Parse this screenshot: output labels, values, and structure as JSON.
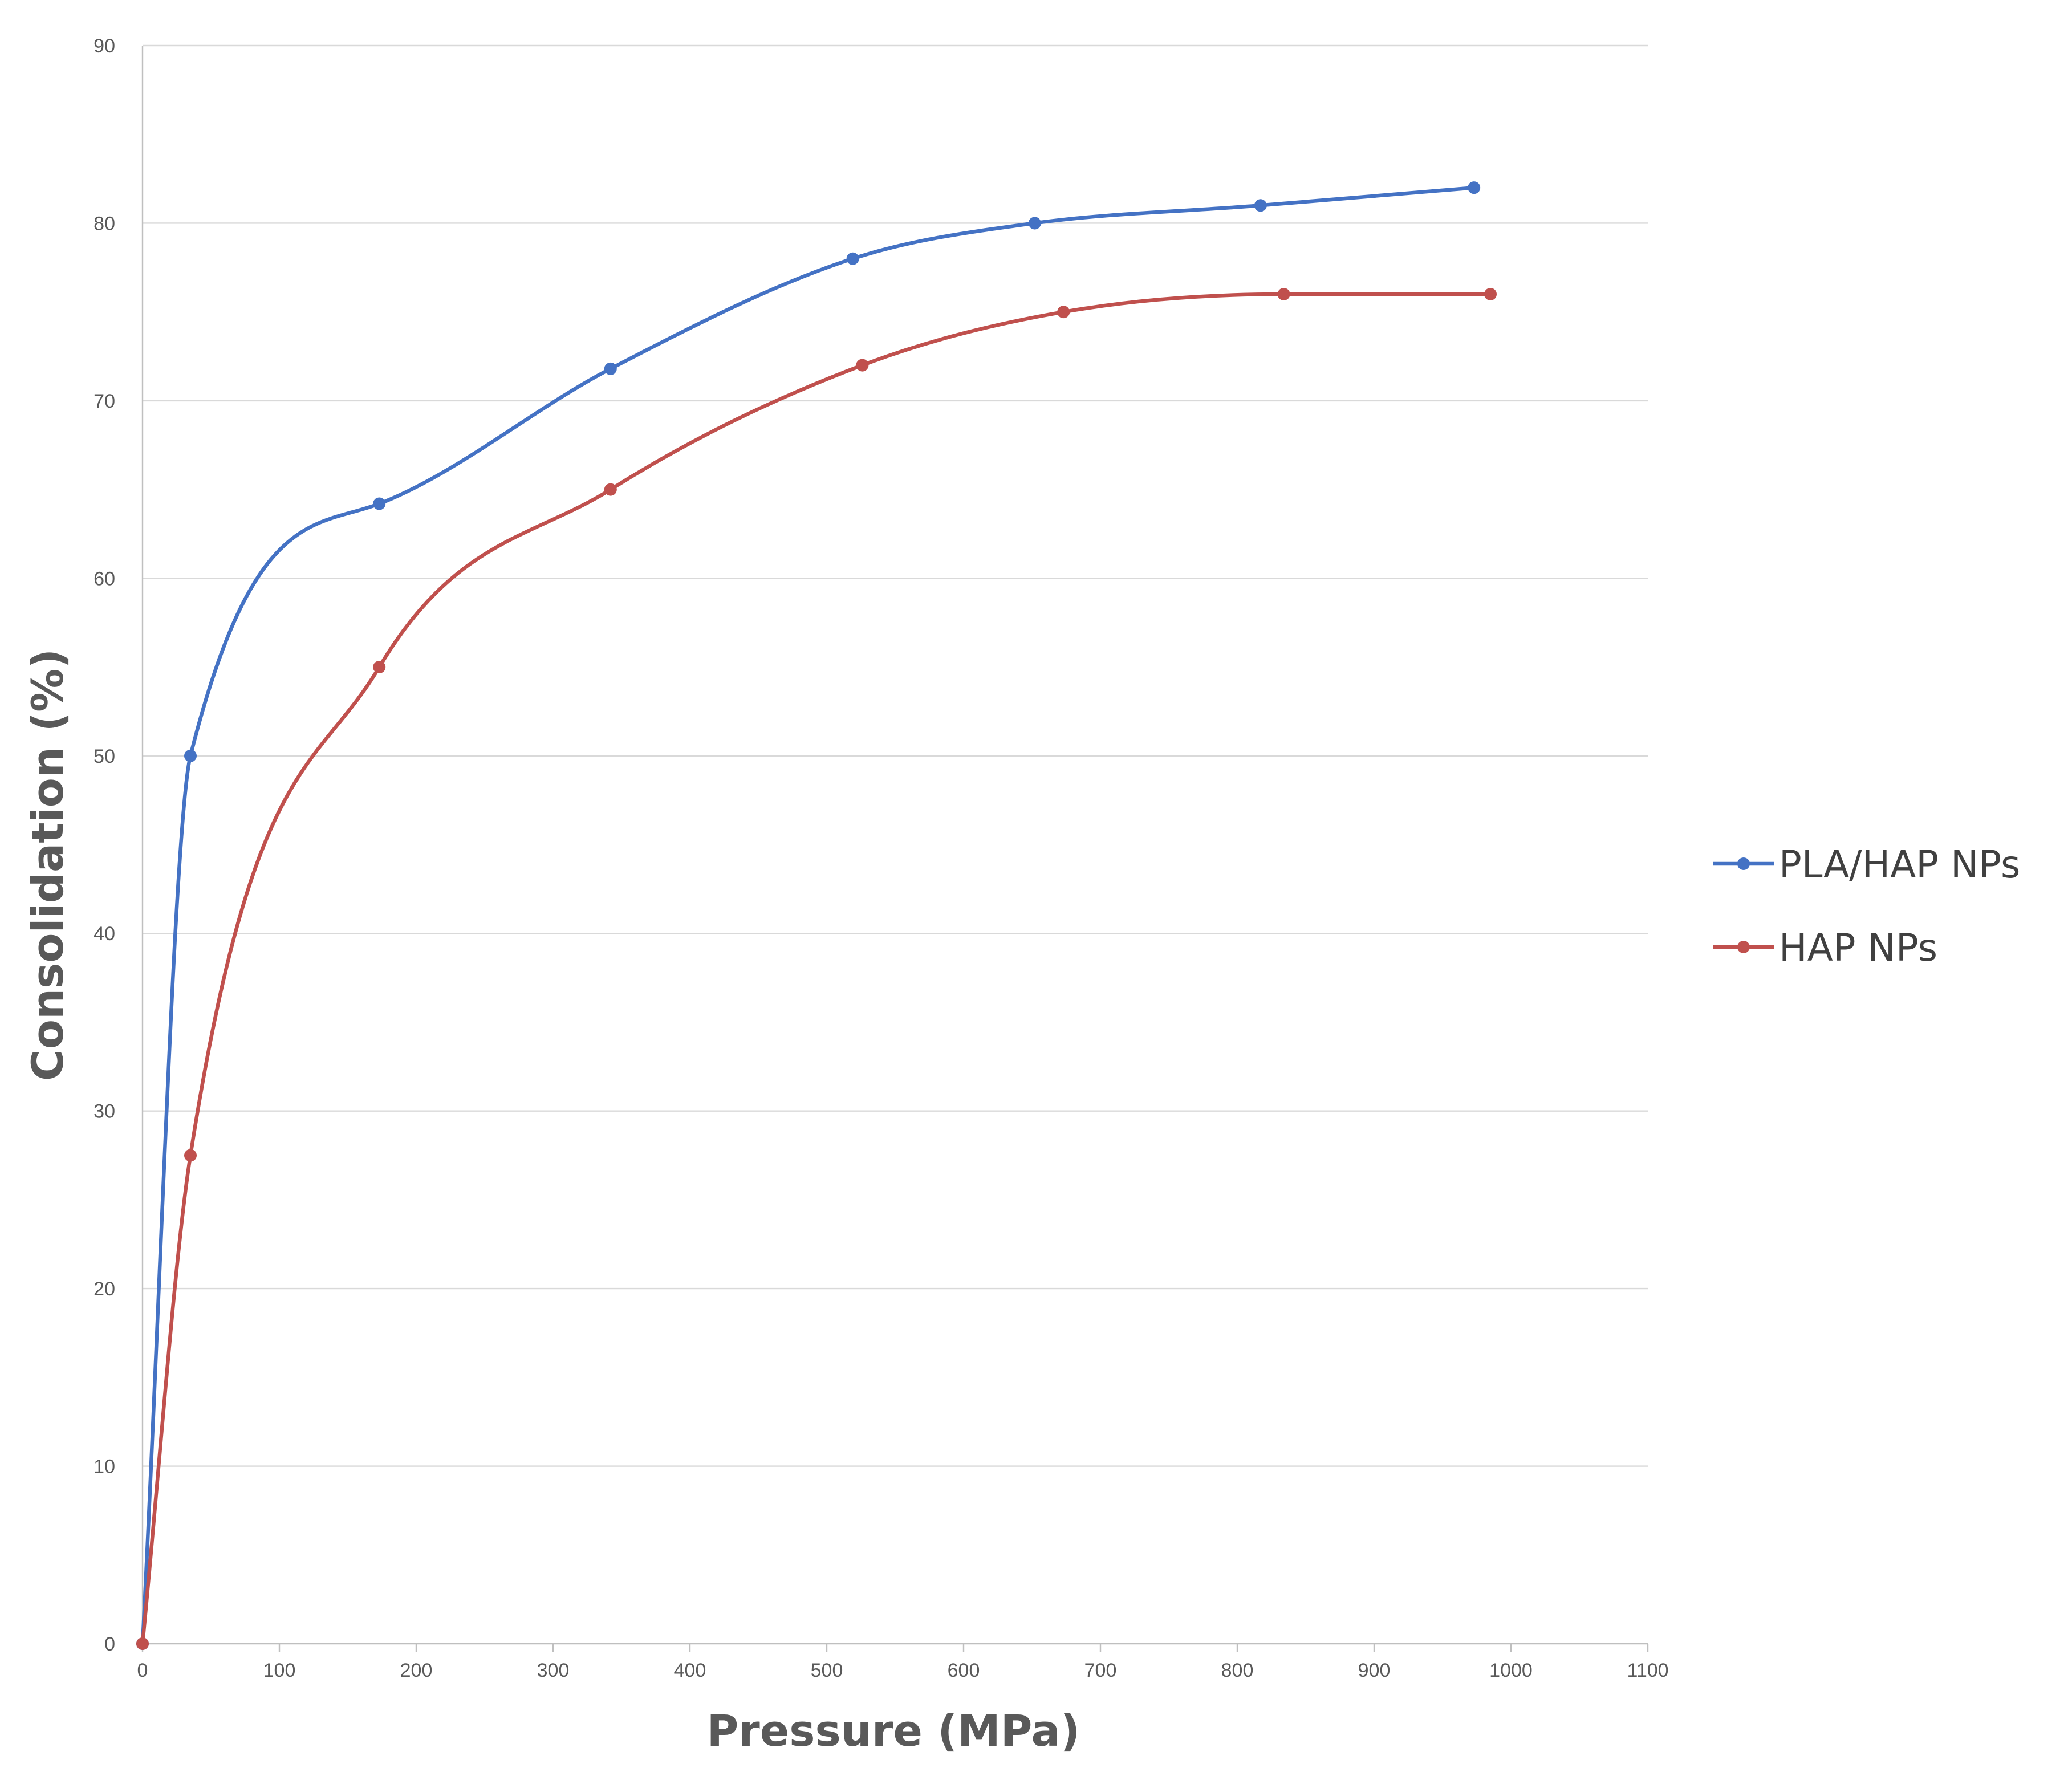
{
  "chart_data": {
    "type": "line",
    "title": "",
    "xlabel": "Pressure (MPa)",
    "ylabel": "Consolidation (%)",
    "xlim": [
      0,
      1100
    ],
    "ylim": [
      0,
      90
    ],
    "x_ticks": [
      0,
      100,
      200,
      300,
      400,
      500,
      600,
      700,
      800,
      900,
      1000,
      1100
    ],
    "y_ticks": [
      0,
      10,
      20,
      30,
      40,
      50,
      60,
      70,
      80,
      90
    ],
    "grid": "horizontal",
    "smooth": true,
    "legend_position": "right",
    "series": [
      {
        "name": "PLA/HAP NPs",
        "color": "#4472c4",
        "x": [
          0,
          35,
          173,
          342,
          519,
          652,
          817,
          973
        ],
        "y": [
          0,
          50,
          64.2,
          71.8,
          78,
          80,
          81,
          82
        ]
      },
      {
        "name": "HAP NPs",
        "color": "#c0504d",
        "x": [
          0,
          35,
          173,
          342,
          526,
          673,
          834,
          985
        ],
        "y": [
          0,
          27.5,
          55,
          65,
          72,
          75,
          76,
          76
        ]
      }
    ]
  }
}
